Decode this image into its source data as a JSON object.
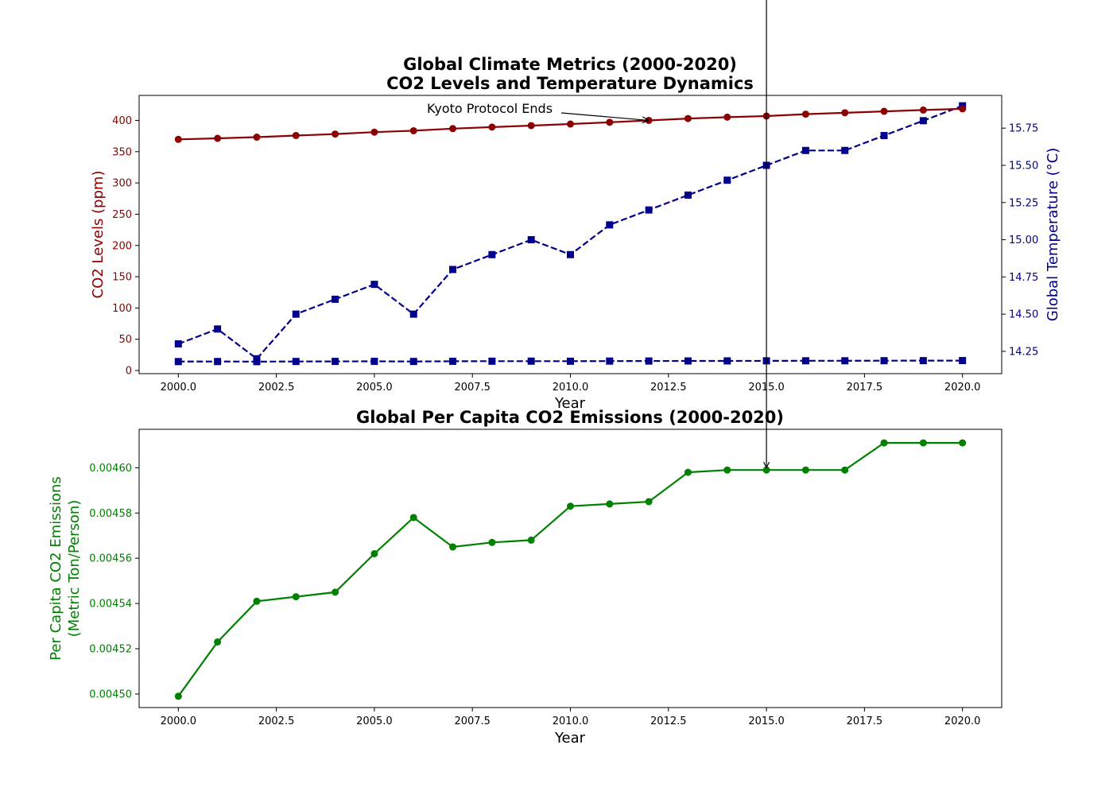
{
  "chart_data": [
    {
      "type": "line",
      "title": "Global Climate Metrics (2000-2020)",
      "subtitle": "CO2 Levels and Temperature Dynamics",
      "xlabel": "Year",
      "ylabel_left": "CO2 Levels (ppm)",
      "ylabel_right": "Global Temperature (°C)",
      "xlim": [
        1999,
        2021
      ],
      "ylim_left": [
        -5,
        440
      ],
      "ylim_right": [
        14.1,
        15.97
      ],
      "x_ticks": [
        2000.0,
        2002.5,
        2005.0,
        2007.5,
        2010.0,
        2012.5,
        2015.0,
        2017.5,
        2020.0
      ],
      "x_tick_labels": [
        "2000.0",
        "2002.5",
        "2005.0",
        "2007.5",
        "2010.0",
        "2012.5",
        "2015.0",
        "2017.5",
        "2020.0"
      ],
      "y_ticks_left": [
        0,
        50,
        100,
        150,
        200,
        250,
        300,
        350,
        400
      ],
      "y_tick_labels_left": [
        "0",
        "50",
        "100",
        "150",
        "200",
        "250",
        "300",
        "350",
        "400"
      ],
      "y_ticks_right": [
        14.25,
        14.5,
        14.75,
        15.0,
        15.25,
        15.5,
        15.75
      ],
      "y_tick_labels_right": [
        "14.25",
        "14.50",
        "14.75",
        "15.00",
        "15.25",
        "15.50",
        "15.75"
      ],
      "x": [
        2000,
        2001,
        2002,
        2003,
        2004,
        2005,
        2006,
        2007,
        2008,
        2009,
        2010,
        2011,
        2012,
        2013,
        2014,
        2015,
        2016,
        2017,
        2018,
        2019,
        2020
      ],
      "series": [
        {
          "axis": "left",
          "marker": "circle",
          "linestyle": "solid",
          "color": "#8b0000",
          "values": [
            369.7,
            371.3,
            373.2,
            375.8,
            378.2,
            381.2,
            383.5,
            386.9,
            389.3,
            391.7,
            394.2,
            397.0,
            400.0,
            403.0,
            405.2,
            407.0,
            410.0,
            412.2,
            414.5,
            416.6,
            418.5
          ]
        },
        {
          "axis": "right",
          "marker": "square",
          "linestyle": "dashed",
          "color": "#00008b",
          "values": [
            14.3,
            14.4,
            14.2,
            14.5,
            14.6,
            14.7,
            14.5,
            14.8,
            14.9,
            15.0,
            14.9,
            15.1,
            15.2,
            15.3,
            15.4,
            15.5,
            15.6,
            15.6,
            15.7,
            15.8,
            15.9
          ]
        },
        {
          "axis": "left",
          "marker": "square",
          "linestyle": "dashed",
          "color": "#00008b",
          "values": [
            14.3,
            14.4,
            14.2,
            14.5,
            14.6,
            14.7,
            14.5,
            14.8,
            14.9,
            15.0,
            14.9,
            15.1,
            15.2,
            15.3,
            15.4,
            15.5,
            15.6,
            15.6,
            15.7,
            15.8,
            15.9
          ]
        }
      ],
      "annotation": {
        "text": "Kyoto Protocol Ends",
        "x": 2012,
        "y": 400
      },
      "vline_x": 2015,
      "grid": false
    },
    {
      "type": "line",
      "title": "Global Per Capita CO2 Emissions (2000-2020)",
      "xlabel": "Year",
      "ylabel_line1": "Per Capita CO2 Emissions",
      "ylabel_line2": "(Metric Ton/Person)",
      "xlim": [
        1999,
        2021
      ],
      "ylim": [
        0.004494,
        0.004617
      ],
      "x_ticks": [
        2000.0,
        2002.5,
        2005.0,
        2007.5,
        2010.0,
        2012.5,
        2015.0,
        2017.5,
        2020.0
      ],
      "x_tick_labels": [
        "2000.0",
        "2002.5",
        "2005.0",
        "2007.5",
        "2010.0",
        "2012.5",
        "2015.0",
        "2017.5",
        "2020.0"
      ],
      "y_ticks": [
        0.0045,
        0.00452,
        0.00454,
        0.00456,
        0.00458,
        0.0046
      ],
      "y_tick_labels": [
        "0.00450",
        "0.00452",
        "0.00454",
        "0.00456",
        "0.00458",
        "0.00460"
      ],
      "x": [
        2000,
        2001,
        2002,
        2003,
        2004,
        2005,
        2006,
        2007,
        2008,
        2009,
        2010,
        2011,
        2012,
        2013,
        2014,
        2015,
        2016,
        2017,
        2018,
        2019,
        2020
      ],
      "series": [
        {
          "marker": "circle",
          "linestyle": "solid",
          "color": "#008000",
          "values": [
            0.004499,
            0.004523,
            0.004541,
            0.004543,
            0.004545,
            0.004562,
            0.004578,
            0.004565,
            0.004567,
            0.004568,
            0.004583,
            0.004584,
            0.004585,
            0.004598,
            0.004599,
            0.004599,
            0.004599,
            0.004599,
            0.004611,
            0.004611,
            0.004611
          ]
        }
      ],
      "arrow_x": 2015,
      "grid": false
    }
  ]
}
